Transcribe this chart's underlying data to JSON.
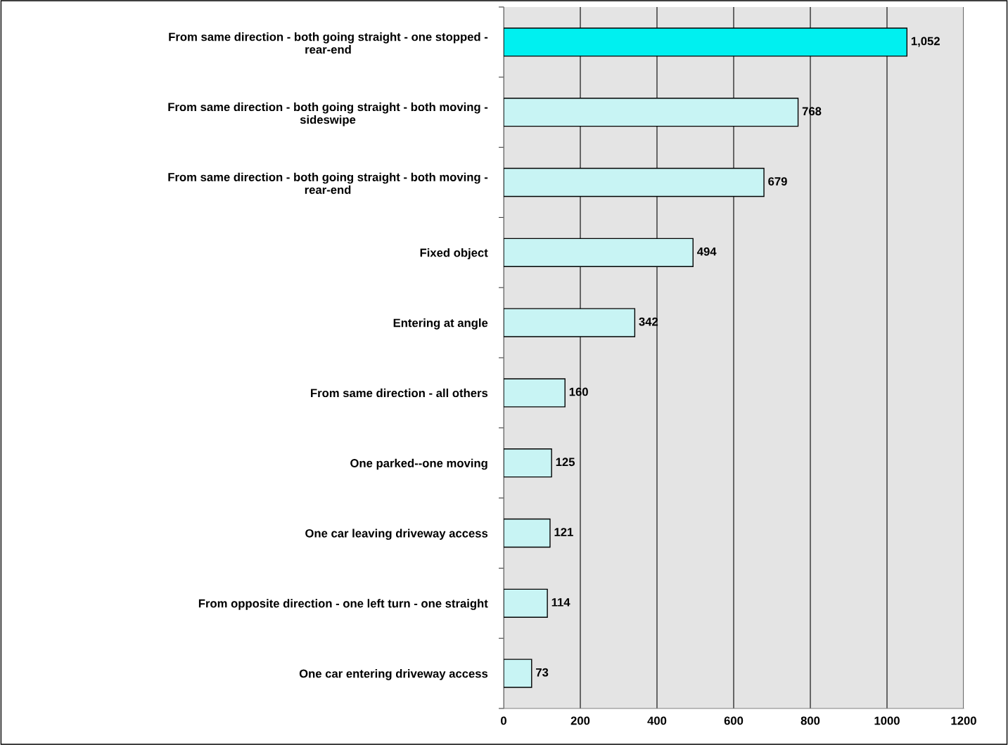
{
  "chart_data": {
    "type": "bar",
    "orientation": "horizontal",
    "categories": [
      "From same direction - both going straight - one stopped - rear-end",
      "From same direction - both going straight - both moving - sideswipe",
      "From same direction - both going straight - both moving - rear-end",
      "Fixed object",
      "Entering at angle",
      "From same direction - all others",
      "One parked--one moving",
      "One car leaving driveway access",
      "From opposite direction - one left turn - one straight",
      "One car entering driveway access"
    ],
    "values": [
      1052,
      768,
      679,
      494,
      342,
      160,
      125,
      121,
      114,
      73
    ],
    "value_labels": [
      "1,052",
      "768",
      "679",
      "494",
      "342",
      "160",
      "125",
      "121",
      "114",
      "73"
    ],
    "colors": [
      "#00f0f0",
      "#c8f4f4",
      "#c8f4f4",
      "#c8f4f4",
      "#c8f4f4",
      "#c8f4f4",
      "#c8f4f4",
      "#c8f4f4",
      "#c8f4f4",
      "#c8f4f4"
    ],
    "xlim": [
      0,
      1200
    ],
    "xticks": [
      0,
      200,
      400,
      600,
      800,
      1000,
      1200
    ],
    "grid": "x"
  }
}
